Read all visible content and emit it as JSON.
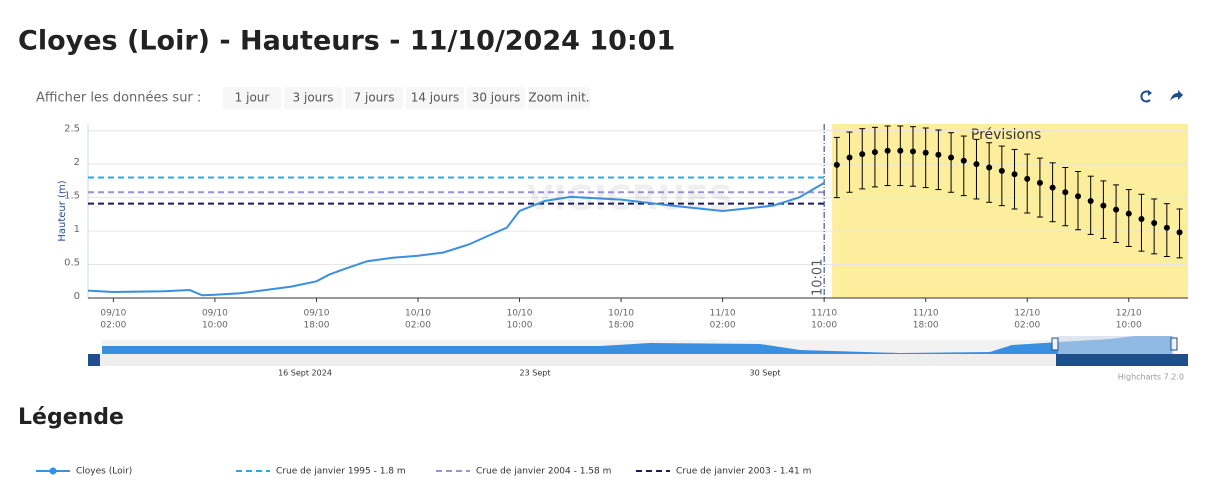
{
  "title": "Cloyes (Loir) - Hauteurs - 11/10/2024 10:01",
  "toolbar": {
    "label": "Afficher les données sur :",
    "buttons": [
      "1 jour",
      "3 jours",
      "7 jours",
      "14 jours",
      "30 jours",
      "Zoom init."
    ]
  },
  "legend_title": "Légende",
  "chart_data": {
    "type": "line",
    "y_label": "Hauteur (m)",
    "ylim": [
      0,
      2.6
    ],
    "yticks": [
      0,
      0.5,
      1,
      1.5,
      2,
      2.5
    ],
    "grid": true,
    "xlim": [
      "09/10 00:00",
      "12/10 14:40"
    ],
    "xticks": [
      {
        "date": "09/10",
        "time": "02:00"
      },
      {
        "date": "09/10",
        "time": "10:00"
      },
      {
        "date": "09/10",
        "time": "18:00"
      },
      {
        "date": "10/10",
        "time": "02:00"
      },
      {
        "date": "10/10",
        "time": "10:00"
      },
      {
        "date": "10/10",
        "time": "18:00"
      },
      {
        "date": "11/10",
        "time": "02:00"
      },
      {
        "date": "11/10",
        "time": "10:00"
      },
      {
        "date": "11/10",
        "time": "18:00"
      },
      {
        "date": "12/10",
        "time": "02:00"
      },
      {
        "date": "12/10",
        "time": "10:00"
      }
    ],
    "watermark": "VIGICRUES",
    "series": [
      {
        "name": "Cloyes (Loir)",
        "color": "#3a8fe0",
        "x": [
          "09/10 00:00",
          "09/10 02:00",
          "09/10 06:00",
          "09/10 08:00",
          "09/10 09:00",
          "09/10 10:00",
          "09/10 12:00",
          "09/10 14:00",
          "09/10 16:00",
          "09/10 18:00",
          "09/10 19:00",
          "09/10 20:00",
          "09/10 22:00",
          "10/10 00:00",
          "10/10 02:00",
          "10/10 04:00",
          "10/10 06:00",
          "10/10 08:00",
          "10/10 09:00",
          "10/10 10:00",
          "10/10 12:00",
          "10/10 14:00",
          "10/10 18:00",
          "10/10 22:00",
          "11/10 02:00",
          "11/10 06:00",
          "11/10 08:00",
          "11/10 10:00"
        ],
        "values": [
          0.11,
          0.09,
          0.1,
          0.12,
          0.04,
          0.05,
          0.07,
          0.12,
          0.17,
          0.25,
          0.35,
          0.42,
          0.55,
          0.6,
          0.63,
          0.68,
          0.8,
          0.97,
          1.05,
          1.3,
          1.45,
          1.51,
          1.47,
          1.38,
          1.3,
          1.38,
          1.5,
          1.72
        ]
      }
    ],
    "forecast": {
      "label": "Prévisions",
      "color": "#fdee9e",
      "start": "11/10 10:00",
      "now_label": "10:01",
      "x": [
        "11/10 11:00",
        "11/10 12:00",
        "11/10 13:00",
        "11/10 14:00",
        "11/10 15:00",
        "11/10 16:00",
        "11/10 17:00",
        "11/10 18:00",
        "11/10 19:00",
        "11/10 20:00",
        "11/10 21:00",
        "11/10 22:00",
        "11/10 23:00",
        "12/10 00:00",
        "12/10 01:00",
        "12/10 02:00",
        "12/10 03:00",
        "12/10 04:00",
        "12/10 05:00",
        "12/10 06:00",
        "12/10 07:00",
        "12/10 08:00",
        "12/10 09:00",
        "12/10 10:00",
        "12/10 11:00",
        "12/10 12:00",
        "12/10 13:00",
        "12/10 14:00"
      ],
      "values": [
        1.99,
        2.1,
        2.15,
        2.18,
        2.2,
        2.2,
        2.19,
        2.17,
        2.14,
        2.1,
        2.05,
        2.0,
        1.95,
        1.9,
        1.85,
        1.78,
        1.72,
        1.65,
        1.58,
        1.52,
        1.45,
        1.38,
        1.32,
        1.26,
        1.18,
        1.12,
        1.05,
        0.98
      ],
      "low": [
        1.5,
        1.58,
        1.63,
        1.66,
        1.68,
        1.68,
        1.67,
        1.65,
        1.62,
        1.58,
        1.53,
        1.48,
        1.43,
        1.38,
        1.33,
        1.27,
        1.21,
        1.14,
        1.08,
        1.02,
        0.95,
        0.89,
        0.83,
        0.77,
        0.7,
        0.66,
        0.62,
        0.6
      ],
      "high": [
        2.4,
        2.48,
        2.53,
        2.55,
        2.57,
        2.57,
        2.56,
        2.54,
        2.51,
        2.47,
        2.42,
        2.37,
        2.32,
        2.27,
        2.22,
        2.15,
        2.09,
        2.02,
        1.95,
        1.89,
        1.82,
        1.75,
        1.69,
        1.62,
        1.55,
        1.48,
        1.41,
        1.33
      ]
    },
    "thresholds": [
      {
        "name": "Crue de janvier 1995 - 1.8 m",
        "value": 1.8,
        "color": "#2ea8e0"
      },
      {
        "name": "Crue de janvier 2004 - 1.58 m",
        "value": 1.58,
        "color": "#9b8fd6"
      },
      {
        "name": "Crue de janvier 2003 - 1.41 m",
        "value": 1.41,
        "color": "#1a1a5e"
      }
    ],
    "navigator": {
      "labels": [
        "16 Sept 2024",
        "23 Sept",
        "30 Sept"
      ],
      "credits": "Highcharts 7.2.0"
    }
  }
}
